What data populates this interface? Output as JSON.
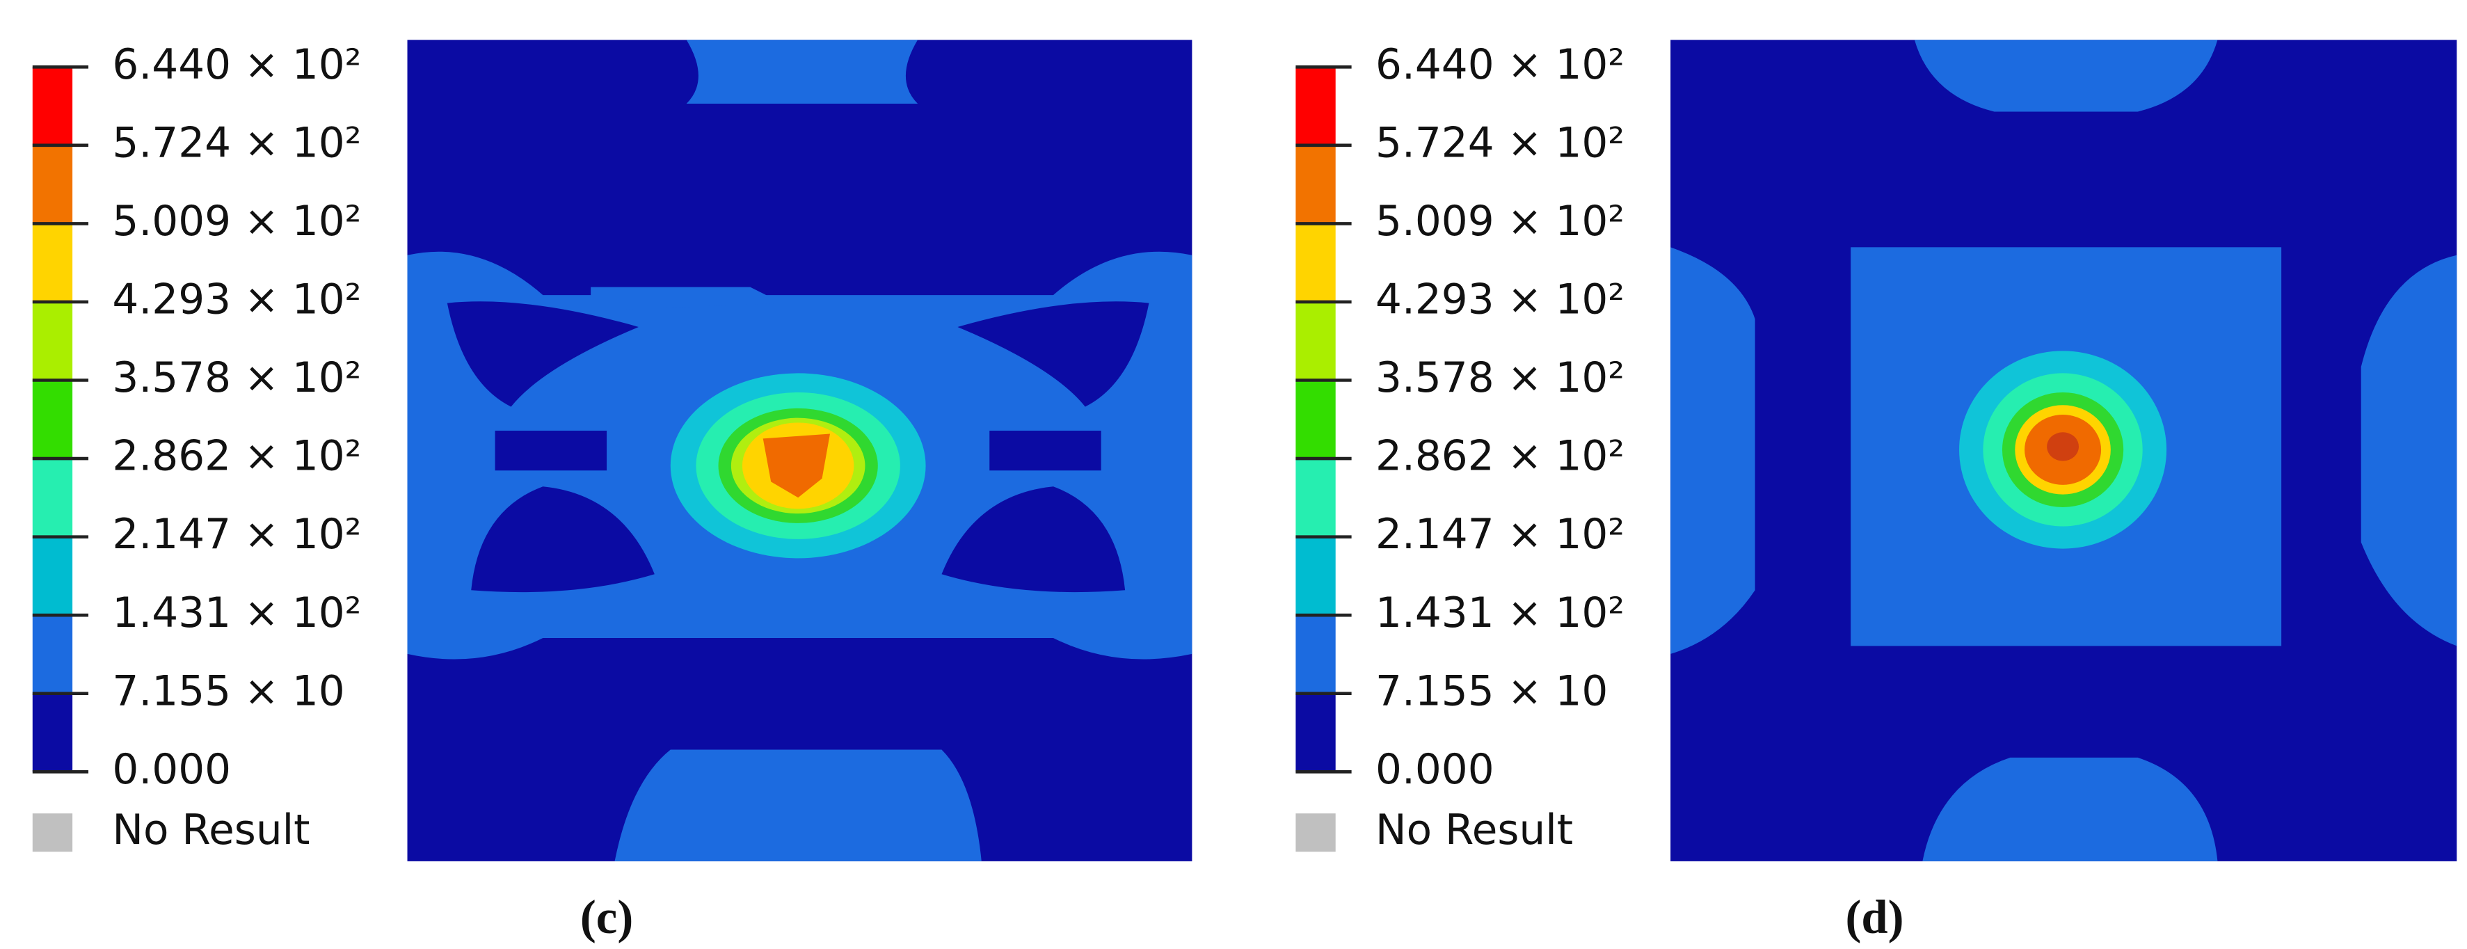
{
  "panels": [
    {
      "legend": {
        "labels": [
          "6.440 × 10²",
          "5.724 × 10²",
          "5.009 × 10²",
          "4.293 × 10²",
          "3.578 × 10²",
          "2.862 × 10²",
          "2.147 × 10²",
          "1.431 × 10²",
          "7.155 × 10",
          "0.000"
        ],
        "no_result": "No Result"
      },
      "caption": "(c)"
    },
    {
      "legend": {
        "labels": [
          "6.440 × 10²",
          "5.724 × 10²",
          "5.009 × 10²",
          "4.293 × 10²",
          "3.578 × 10²",
          "2.862 × 10²",
          "2.147 × 10²",
          "1.431 × 10²",
          "7.155 × 10",
          "0.000"
        ],
        "no_result": "No Result"
      },
      "caption": "(d)"
    }
  ]
}
